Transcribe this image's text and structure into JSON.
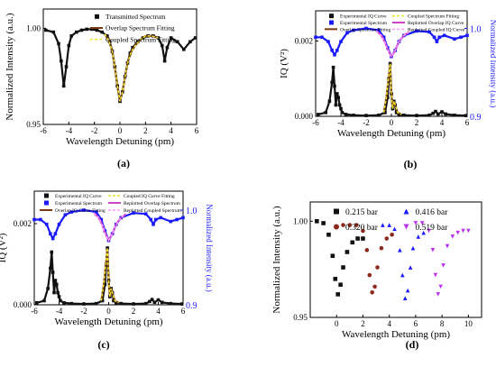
{
  "chart_data": [
    {
      "type": "line",
      "panel_label": "(a)",
      "xlabel": "Wavelength Detuning (pm)",
      "ylabel": "Normalized Intensity (a.u.)",
      "xlim": [
        -6,
        6
      ],
      "ylim": [
        0.95,
        1.01
      ],
      "xticks": [
        -6,
        -4,
        -2,
        0,
        2,
        4,
        6
      ],
      "yticks": [
        0.95,
        1.0
      ],
      "ytick_labels": [
        "0.95",
        "1.00"
      ],
      "legend_position": "top-right",
      "series": [
        {
          "name": "Transmitted Spectrum",
          "style": "squares",
          "color": "#111111",
          "x": [
            -5.8,
            -5.2,
            -4.8,
            -4.6,
            -4.4,
            -4.2,
            -4.0,
            -3.8,
            -3.4,
            -3.0,
            -2.6,
            -2.2,
            -1.8,
            -1.4,
            -1.0,
            -0.8,
            -0.6,
            -0.4,
            -0.2,
            0.0,
            0.2,
            0.4,
            0.6,
            0.8,
            1.0,
            1.4,
            1.8,
            2.2,
            2.6,
            3.0,
            3.3,
            3.5,
            3.7,
            4.0,
            4.5,
            5.0,
            5.5,
            5.9
          ],
          "values": [
            0.999,
            0.998,
            0.992,
            0.983,
            0.97,
            0.98,
            0.991,
            0.996,
            0.998,
            0.999,
            0.9995,
            0.9995,
            0.999,
            0.998,
            0.996,
            0.993,
            0.988,
            0.98,
            0.97,
            0.962,
            0.967,
            0.975,
            0.982,
            0.987,
            0.99,
            0.993,
            0.995,
            0.996,
            0.996,
            0.995,
            0.991,
            0.983,
            0.99,
            0.995,
            0.993,
            0.989,
            0.993,
            0.995
          ]
        },
        {
          "name": "Overlap Spectrum Fitting",
          "style": "line",
          "color": "#7a3b10",
          "x": [
            -1.2,
            -0.9,
            -0.6,
            -0.4,
            -0.2,
            0.0,
            0.2,
            0.4,
            0.6,
            0.9,
            1.2,
            1.6,
            2.0,
            2.5,
            3.0
          ],
          "values": [
            0.997,
            0.994,
            0.988,
            0.98,
            0.97,
            0.962,
            0.967,
            0.975,
            0.982,
            0.988,
            0.991,
            0.994,
            0.996,
            0.996,
            0.995
          ]
        },
        {
          "name": "Coupled Spectrum Fitting",
          "style": "dashed",
          "color": "#e6e629",
          "x": [
            -1.2,
            -0.9,
            -0.6,
            -0.4,
            -0.2,
            0.0,
            0.2,
            0.4,
            0.6,
            0.9,
            1.2,
            1.6,
            2.0,
            2.5,
            3.0
          ],
          "values": [
            0.997,
            0.994,
            0.988,
            0.98,
            0.97,
            0.962,
            0.967,
            0.975,
            0.982,
            0.988,
            0.991,
            0.994,
            0.996,
            0.996,
            0.995
          ]
        }
      ]
    },
    {
      "type": "line",
      "panel_label": "(b)",
      "xlabel": "Wavelength Detuning (pm)",
      "ylabel": "IQ (V²)",
      "y2label": "Normalized Intensity (a.u.)",
      "xlim": [
        -6,
        6
      ],
      "ylim": [
        0,
        0.0028
      ],
      "y2lim": [
        0.9,
        1.02
      ],
      "xticks": [
        -6,
        -4,
        -2,
        0,
        2,
        4,
        6
      ],
      "yticks": [
        0,
        0.002
      ],
      "ytick_labels": [
        "0.000",
        "0.002"
      ],
      "y2ticks": [
        0.9,
        1.0
      ],
      "y2tick_labels": [
        "0.9",
        "1.0"
      ],
      "legend_position": "top",
      "series": [
        {
          "name": "Experimental IQ Curve",
          "style": "squares",
          "color": "#111111",
          "axis": "left",
          "x": [
            -5.8,
            -5.2,
            -4.9,
            -4.7,
            -4.6,
            -4.5,
            -4.4,
            -4.3,
            -4.2,
            -4.1,
            -4.0,
            -3.9,
            -3.6,
            -3.0,
            -2.0,
            -1.0,
            -0.5,
            -0.3,
            -0.2,
            -0.1,
            0.0,
            0.1,
            0.2,
            0.3,
            0.4,
            0.6,
            1.0,
            2.0,
            3.0,
            3.3,
            3.5,
            3.7,
            4.0,
            4.3,
            5.0,
            5.9
          ],
          "values": [
            5e-05,
            0.0001,
            0.0004,
            0.0009,
            0.0013,
            0.0008,
            0.0003,
            0.0006,
            0.0005,
            0.0003,
            0.0002,
            0.0001,
            5e-05,
            3e-05,
            2e-05,
            3e-05,
            0.0001,
            0.0005,
            0.001,
            0.0014,
            0.0006,
            0.0002,
            0.0004,
            0.0003,
            0.0001,
            5e-05,
            3e-05,
            2e-05,
            3e-05,
            8e-05,
            0.00013,
            6e-05,
            0.00012,
            6e-05,
            3e-05,
            2e-05
          ]
        },
        {
          "name": "Experimental Spectrum",
          "style": "squares",
          "color": "#1a1aff",
          "axis": "right",
          "x": [
            -6.0,
            -5.5,
            -5.0,
            -4.7,
            -4.5,
            -4.3,
            -4.0,
            -3.5,
            -3.0,
            -2.0,
            -1.0,
            -0.6,
            -0.3,
            0.0,
            0.3,
            0.6,
            1.0,
            2.0,
            3.0,
            3.4,
            3.6,
            3.8,
            4.2,
            5.0,
            5.5,
            6.0
          ],
          "values": [
            0.99,
            0.99,
            0.985,
            0.975,
            0.97,
            0.975,
            0.985,
            0.995,
            0.998,
            1.0,
            0.998,
            0.99,
            0.978,
            0.968,
            0.975,
            0.985,
            0.992,
            0.997,
            0.996,
            0.99,
            0.985,
            0.99,
            0.992,
            0.988,
            0.99,
            0.992
          ]
        },
        {
          "name": "Overlap Spectrum Fitting",
          "style": "line",
          "color": "#7a3b10",
          "axis": "left",
          "x": [
            -0.6,
            -0.4,
            -0.2,
            -0.1,
            0.0,
            0.1,
            0.2,
            0.3,
            0.5,
            0.8
          ],
          "values": [
            0.0001,
            0.0005,
            0.0011,
            0.0014,
            0.0006,
            0.0002,
            0.0004,
            0.0003,
            0.0001,
            5e-05
          ]
        },
        {
          "name": "Coupled Spectrum Fitting",
          "style": "dashed",
          "color": "#e6e629",
          "axis": "left",
          "x": [
            -0.6,
            -0.4,
            -0.2,
            -0.1,
            0.0,
            0.1,
            0.2,
            0.3,
            0.5,
            0.8
          ],
          "values": [
            0.0001,
            0.0005,
            0.0011,
            0.0014,
            0.0006,
            0.0002,
            0.0004,
            0.0003,
            0.0001,
            5e-05
          ]
        },
        {
          "name": "Replotted Overlap IQ Curve",
          "style": "line",
          "color": "#cc44cc",
          "axis": "right",
          "x": [
            -1.2,
            -0.8,
            -0.5,
            -0.3,
            0.0,
            0.3,
            0.6,
            1.0,
            1.4
          ],
          "values": [
            0.997,
            0.992,
            0.984,
            0.976,
            0.968,
            0.975,
            0.985,
            0.992,
            0.996
          ]
        },
        {
          "name": "Replotted Coupled IQ Curve",
          "style": "dashed",
          "color": "#ff99ff",
          "axis": "right",
          "x": [
            -1.2,
            -0.8,
            -0.5,
            -0.3,
            0.0,
            0.3,
            0.6,
            1.0,
            1.4
          ],
          "values": [
            0.997,
            0.992,
            0.984,
            0.976,
            0.968,
            0.975,
            0.985,
            0.992,
            0.996
          ]
        }
      ]
    },
    {
      "type": "line",
      "panel_label": "(c)",
      "xlabel": "Wavelength Detuning (pm)",
      "ylabel": "IQ (V²)",
      "y2label": "Normalized Intensity (a.u.)",
      "xlim": [
        -6,
        6
      ],
      "ylim": [
        0,
        0.0028
      ],
      "y2lim": [
        0.9,
        1.02
      ],
      "xticks": [
        -6,
        -4,
        -2,
        0,
        2,
        4,
        6
      ],
      "yticks": [
        0,
        0.002
      ],
      "ytick_labels": [
        "0.000",
        "0.002"
      ],
      "y2ticks": [
        0.9,
        1.0
      ],
      "y2tick_labels": [
        "0.9",
        "1.0"
      ],
      "legend_position": "top",
      "series": [
        {
          "name": "Experimental IQ Curve",
          "style": "squares",
          "color": "#111111",
          "axis": "left",
          "x": [
            -5.8,
            -5.2,
            -4.9,
            -4.7,
            -4.6,
            -4.5,
            -4.4,
            -4.3,
            -4.2,
            -4.1,
            -4.0,
            -3.9,
            -3.6,
            -3.0,
            -2.0,
            -1.0,
            -0.5,
            -0.3,
            -0.2,
            -0.1,
            0.0,
            0.1,
            0.2,
            0.3,
            0.4,
            0.6,
            1.0,
            2.0,
            3.0,
            3.3,
            3.5,
            3.7,
            4.0,
            4.3,
            5.0,
            5.9
          ],
          "values": [
            5e-05,
            0.0001,
            0.0004,
            0.0009,
            0.0013,
            0.0008,
            0.0003,
            0.0006,
            0.0005,
            0.0003,
            0.0002,
            0.0001,
            5e-05,
            3e-05,
            2e-05,
            3e-05,
            0.0001,
            0.0005,
            0.001,
            0.0014,
            0.0006,
            0.0002,
            0.0004,
            0.0003,
            0.0001,
            5e-05,
            3e-05,
            2e-05,
            3e-05,
            8e-05,
            0.00013,
            6e-05,
            0.00012,
            6e-05,
            3e-05,
            2e-05
          ]
        },
        {
          "name": "Experimental Spectrum",
          "style": "squares",
          "color": "#1a1aff",
          "axis": "right",
          "x": [
            -6.0,
            -5.5,
            -5.0,
            -4.7,
            -4.5,
            -4.3,
            -4.0,
            -3.5,
            -3.0,
            -2.0,
            -1.0,
            -0.6,
            -0.3,
            0.0,
            0.3,
            0.6,
            1.0,
            2.0,
            3.0,
            3.4,
            3.6,
            3.8,
            4.2,
            5.0,
            5.5,
            6.0
          ],
          "values": [
            0.99,
            0.99,
            0.985,
            0.975,
            0.97,
            0.975,
            0.985,
            0.995,
            0.998,
            1.0,
            0.998,
            0.99,
            0.978,
            0.968,
            0.975,
            0.985,
            0.992,
            0.997,
            0.996,
            0.99,
            0.985,
            0.99,
            0.992,
            0.988,
            0.99,
            0.992
          ]
        },
        {
          "name": "Overlap IQ Curve Fitting",
          "style": "line",
          "color": "#7a3b10",
          "axis": "left",
          "x": [
            -0.6,
            -0.4,
            -0.2,
            -0.1,
            0.0,
            0.1,
            0.2,
            0.3,
            0.5,
            0.8
          ],
          "values": [
            0.0001,
            0.0005,
            0.0011,
            0.0014,
            0.0006,
            0.0002,
            0.0004,
            0.0003,
            0.0001,
            5e-05
          ]
        },
        {
          "name": "Coupled IQ Curve Fitting",
          "style": "dashed",
          "color": "#e6e629",
          "axis": "left",
          "x": [
            -0.6,
            -0.4,
            -0.2,
            -0.1,
            0.0,
            0.1,
            0.2,
            0.3,
            0.5,
            0.8
          ],
          "values": [
            0.0001,
            0.0005,
            0.0011,
            0.0014,
            0.0006,
            0.0002,
            0.0004,
            0.0003,
            0.0001,
            5e-05
          ]
        },
        {
          "name": "Replotted Overlap Spectrum",
          "style": "line",
          "color": "#cc44cc",
          "axis": "right",
          "x": [
            -1.2,
            -0.8,
            -0.5,
            -0.3,
            0.0,
            0.3,
            0.6,
            1.0,
            1.4
          ],
          "values": [
            0.997,
            0.992,
            0.984,
            0.976,
            0.968,
            0.975,
            0.985,
            0.992,
            0.996
          ]
        },
        {
          "name": "Replotted Coupled Spectrum",
          "style": "dashed",
          "color": "#ff99ff",
          "axis": "right",
          "x": [
            -1.2,
            -0.8,
            -0.5,
            -0.3,
            0.0,
            0.3,
            0.6,
            1.0,
            1.4
          ],
          "values": [
            0.997,
            0.992,
            0.984,
            0.976,
            0.968,
            0.975,
            0.985,
            0.992,
            0.996
          ]
        }
      ]
    },
    {
      "type": "scatter",
      "panel_label": "(d)",
      "xlabel": "Wavelength Detuning (pm)",
      "ylabel": "Normalized Intensity (a.u.)",
      "xlim": [
        -2,
        11
      ],
      "ylim": [
        0.95,
        1.01
      ],
      "xticks": [
        0,
        2,
        4,
        6,
        8,
        10
      ],
      "yticks": [
        0.95,
        1.0
      ],
      "ytick_labels": [
        "0.95",
        "1.00"
      ],
      "legend_position": "top",
      "series": [
        {
          "name": "0.215 bar",
          "marker": "square",
          "color": "#111111",
          "x": [
            -1.5,
            -1.0,
            -0.6,
            -0.3,
            -0.1,
            0.1,
            0.3,
            0.5,
            0.8,
            1.2,
            1.6,
            2.0
          ],
          "values": [
            1.0,
            0.999,
            0.993,
            0.982,
            0.97,
            0.962,
            0.967,
            0.976,
            0.984,
            0.989,
            0.991,
            0.991
          ]
        },
        {
          "name": "0.320 bar",
          "marker": "circle",
          "color": "#8b2a1a",
          "x": [
            0.5,
            1.0,
            1.5,
            2.0,
            2.3,
            2.5,
            2.7,
            2.9,
            3.1,
            3.4,
            3.8,
            4.2
          ],
          "values": [
            0.998,
            0.998,
            0.998,
            0.995,
            0.985,
            0.972,
            0.963,
            0.966,
            0.976,
            0.986,
            0.991,
            0.993
          ]
        },
        {
          "name": "0.416 bar",
          "marker": "triangle-up",
          "color": "#1a1aff",
          "x": [
            3.5,
            4.0,
            4.4,
            4.8,
            5.0,
            5.2,
            5.4,
            5.6,
            5.8,
            6.2,
            6.6
          ],
          "values": [
            0.998,
            0.998,
            0.996,
            0.985,
            0.972,
            0.96,
            0.964,
            0.976,
            0.986,
            0.992,
            0.994
          ]
        },
        {
          "name": "0.519 bar",
          "marker": "triangle-down",
          "color": "#bb33ee",
          "x": [
            6.0,
            6.5,
            7.0,
            7.3,
            7.5,
            7.7,
            7.9,
            8.1,
            8.4,
            8.8,
            9.2,
            9.6,
            10.0
          ],
          "values": [
            0.999,
            0.999,
            0.995,
            0.985,
            0.972,
            0.962,
            0.966,
            0.977,
            0.987,
            0.992,
            0.994,
            0.995,
            0.995
          ]
        }
      ]
    }
  ]
}
